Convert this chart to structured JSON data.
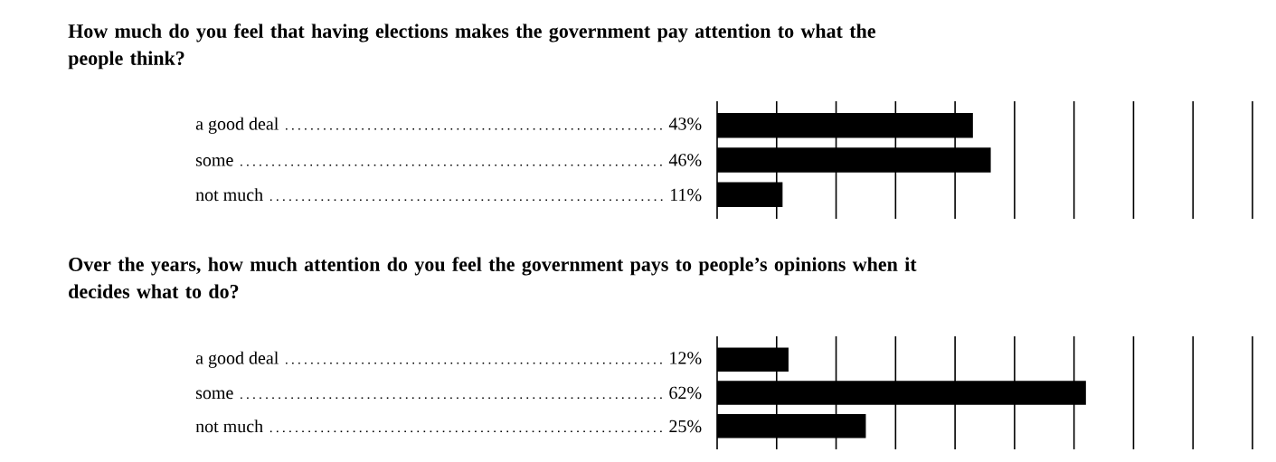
{
  "chart_data": [
    {
      "type": "bar",
      "orientation": "horizontal",
      "title": "How much do you feel that having elections makes the government pay attention to what the people think?",
      "categories": [
        "a good deal",
        "some",
        "not much"
      ],
      "values": [
        43,
        46,
        11
      ],
      "value_labels": [
        "43%",
        "46%",
        "11%"
      ],
      "color": "#000000",
      "xlim": [
        0,
        90
      ],
      "xticks": [
        {
          "value": 0,
          "label": null
        },
        {
          "value": 10,
          "label": null
        },
        {
          "value": 20,
          "label": null
        },
        {
          "value": 30,
          "label": null
        },
        {
          "value": 40,
          "label": null
        },
        {
          "value": 50,
          "label": null
        },
        {
          "value": 60,
          "label": null
        },
        {
          "value": 70,
          "label": null
        },
        {
          "value": 80,
          "label": null
        },
        {
          "value": 90,
          "label": null
        }
      ],
      "grid": "x",
      "tick_labels": "y"
    },
    {
      "type": "bar",
      "orientation": "horizontal",
      "title": "Over the years, how much attention do you feel the government pays to people’s opinions when it decides what to do?",
      "categories": [
        "a good deal",
        "some",
        "not much"
      ],
      "values": [
        12,
        62,
        25
      ],
      "value_labels": [
        "12%",
        "62%",
        "25%"
      ],
      "color": "#000000",
      "xlim": [
        0,
        90
      ],
      "xticks": [
        {
          "value": 0,
          "label": null
        },
        {
          "value": 10,
          "label": null
        },
        {
          "value": 20,
          "label": null
        },
        {
          "value": 30,
          "label": null
        },
        {
          "value": 40,
          "label": null
        },
        {
          "value": 50,
          "label": null
        },
        {
          "value": 60,
          "label": null
        },
        {
          "value": 70,
          "label": null
        },
        {
          "value": 80,
          "label": null
        },
        {
          "value": 90,
          "label": null
        }
      ],
      "grid": "x",
      "tick_labels": "y"
    }
  ]
}
